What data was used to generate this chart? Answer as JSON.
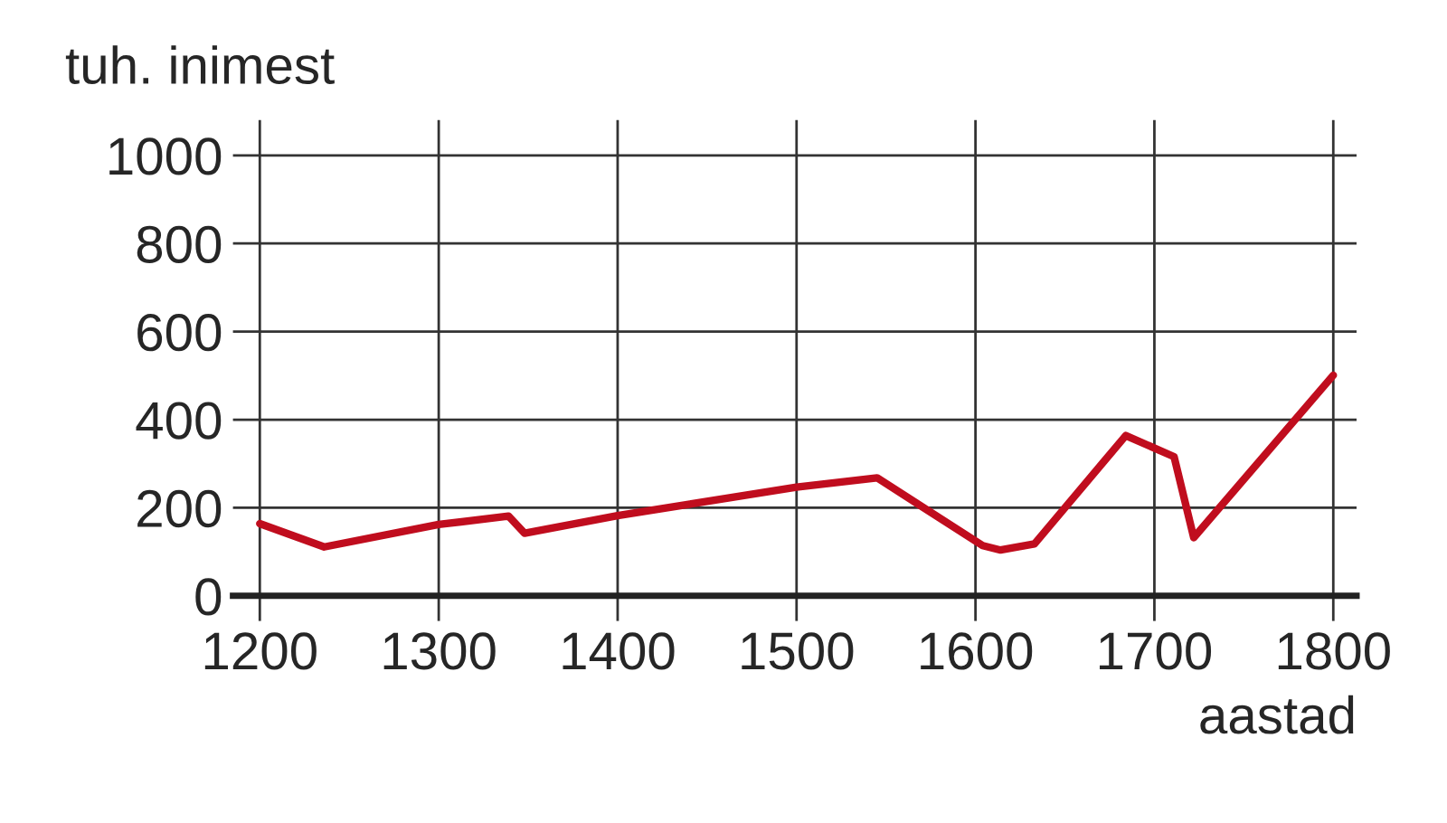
{
  "chart_data": {
    "type": "line",
    "xlabel": "aastad",
    "ylabel": "tuh. inimest",
    "x": [
      1200,
      1236,
      1300,
      1339,
      1348,
      1400,
      1500,
      1545,
      1604,
      1614,
      1633,
      1684,
      1711,
      1722,
      1800
    ],
    "series": [
      {
        "color": "#c00d1e",
        "values": [
          164,
          111,
          162,
          181,
          142,
          182,
          247,
          268,
          114,
          104,
          118,
          364,
          316,
          132,
          501
        ]
      }
    ],
    "xlim": [
      1185,
      1813
    ],
    "ylim": [
      0,
      1080
    ],
    "xticks": [
      1200,
      1300,
      1400,
      1500,
      1600,
      1700,
      1800
    ],
    "yticks": [
      0,
      200,
      400,
      600,
      800,
      1000
    ],
    "grid": true,
    "marker": "none",
    "line_style": "solid"
  }
}
